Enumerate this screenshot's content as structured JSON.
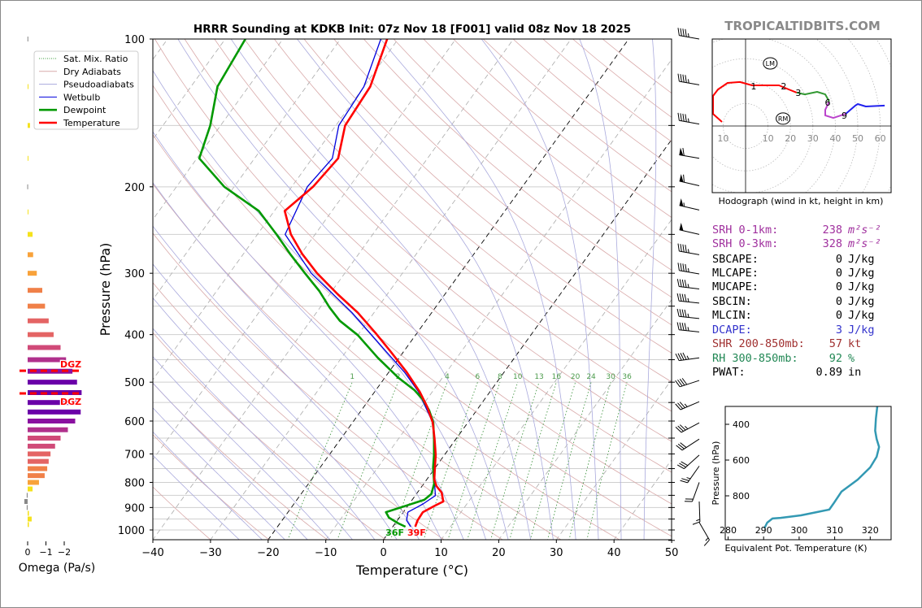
{
  "title": "HRRR Sounding at KDKB Init: 07z Nov 18 [F001] valid 08z Nov 18 2025",
  "watermark": "TROPICALTIDBITS.COM",
  "legend": [
    {
      "label": "Sat. Mix. Ratio",
      "color": "#3a9a3a",
      "style": "dotted"
    },
    {
      "label": "Dry Adiabats",
      "color": "#d9aaaa",
      "style": "solid"
    },
    {
      "label": "Pseudoadiabats",
      "color": "#aaaadd",
      "style": "solid"
    },
    {
      "label": "Wetbulb",
      "color": "#0000dd",
      "style": "solid"
    },
    {
      "label": "Dewpoint",
      "color": "#009900",
      "style": "thick"
    },
    {
      "label": "Temperature",
      "color": "#ff0000",
      "style": "thick"
    }
  ],
  "surface_labels": {
    "dewpoint": "36F",
    "temperature": "39F",
    "dewpoint_color": "#009900",
    "temperature_color": "#ff0000"
  },
  "stats": [
    {
      "label": "SRH 0-1km:",
      "value": "238",
      "unit": "m²s⁻²",
      "color": "#a0309e",
      "italic_unit": true
    },
    {
      "label": "SRH 0-3km:",
      "value": "328",
      "unit": "m²s⁻²",
      "color": "#a0309e",
      "italic_unit": true
    },
    {
      "label": "SBCAPE:",
      "value": "0",
      "unit": "J/kg",
      "color": "#000000"
    },
    {
      "label": "MLCAPE:",
      "value": "0",
      "unit": "J/kg",
      "color": "#000000"
    },
    {
      "label": "MUCAPE:",
      "value": "0",
      "unit": "J/kg",
      "color": "#000000"
    },
    {
      "label": "SBCIN:",
      "value": "0",
      "unit": "J/kg",
      "color": "#000000"
    },
    {
      "label": "MLCIN:",
      "value": "0",
      "unit": "J/kg",
      "color": "#000000"
    },
    {
      "label": "DCAPE:",
      "value": "3",
      "unit": "J/kg",
      "color": "#3333cc"
    },
    {
      "label": "SHR 200-850mb:",
      "value": "57",
      "unit": "kt",
      "color": "#a03030"
    },
    {
      "label": "RH 300-850mb:",
      "value": "92",
      "unit": "%",
      "color": "#228855"
    },
    {
      "label": "PWAT:",
      "value": "0.89",
      "unit": "in",
      "color": "#000000"
    }
  ],
  "chart_data": [
    {
      "type": "line",
      "name": "skew-t",
      "title": "HRRR Sounding at KDKB Init: 07z Nov 18 [F001] valid 08z Nov 18 2025",
      "xlabel": "Temperature (°C)",
      "ylabel": "Pressure (hPa)",
      "xlim": [
        -40,
        50
      ],
      "ylim": [
        1050,
        100
      ],
      "xticks": [
        -40,
        -30,
        -20,
        -10,
        0,
        10,
        20,
        30,
        40,
        50
      ],
      "xtick_labels": [
        "−40",
        "−30",
        "−20",
        "−10",
        "0",
        "10",
        "20",
        "30",
        "40",
        "50"
      ],
      "yticks": [
        100,
        200,
        300,
        400,
        500,
        600,
        700,
        800,
        900,
        1000
      ],
      "ytick_labels": [
        "100",
        "200",
        "300",
        "400",
        "500",
        "600",
        "700",
        "800",
        "900",
        "1000"
      ],
      "highlight_isotherms": [
        -20,
        0
      ],
      "mixing_ratio_values": [
        1,
        2,
        4,
        6,
        8,
        10,
        13,
        16,
        20,
        24,
        30,
        36
      ],
      "mixing_ratio_labels": [
        "1",
        "2",
        "4",
        "6",
        "8",
        "10",
        "13",
        "16",
        "20",
        "24",
        "30",
        "36"
      ],
      "series": [
        {
          "name": "Temperature",
          "color": "#ff0000",
          "p": [
            100,
            125,
            150,
            175,
            200,
            224,
            250,
            274,
            300,
            331,
            361,
            397,
            432,
            477,
            523,
            560,
            604,
            653,
            704,
            746,
            789,
            814,
            839,
            875,
            892,
            920,
            956,
            985
          ],
          "t": [
            -61.9,
            -58.9,
            -58.4,
            -55.5,
            -56.3,
            -58.2,
            -54.2,
            -49.8,
            -44.8,
            -38.6,
            -32.8,
            -27.2,
            -22.4,
            -16.9,
            -12.2,
            -9.1,
            -6.1,
            -3.7,
            -1.5,
            -0.1,
            1.3,
            2.5,
            4.2,
            5.6,
            4.7,
            3.4,
            3.5,
            3.9
          ]
        },
        {
          "name": "Dewpoint",
          "color": "#009900",
          "p": [
            100,
            125,
            150,
            175,
            200,
            224,
            250,
            274,
            300,
            326,
            352,
            375,
            401,
            446,
            490,
            519,
            543,
            571,
            604,
            653,
            704,
            746,
            805,
            845,
            868,
            920,
            944,
            970,
            985
          ],
          "t": [
            -86.5,
            -85.4,
            -81.8,
            -79.6,
            -71.7,
            -62.7,
            -56.7,
            -51.9,
            -46.9,
            -42.2,
            -38.4,
            -34.9,
            -30,
            -23.7,
            -17.6,
            -13.3,
            -10.6,
            -8.2,
            -6,
            -3.8,
            -1.8,
            -0.4,
            1.8,
            2.6,
            2.1,
            -3,
            -1.8,
            0.6,
            2.2
          ]
        },
        {
          "name": "Wetbulb",
          "color": "#0000dd",
          "p": [
            100,
            125,
            150,
            175,
            200,
            250,
            300,
            361,
            432,
            477,
            523,
            604,
            704,
            789,
            851,
            885,
            920,
            956,
            985
          ],
          "t": [
            -63,
            -60,
            -59.5,
            -56.5,
            -57.3,
            -55.2,
            -45.8,
            -33.8,
            -23.2,
            -17.3,
            -12.4,
            -6.1,
            -1.6,
            1.3,
            3.5,
            2.4,
            0.8,
            1.6,
            3.1
          ]
        }
      ],
      "wind_barbs": [
        {
          "p": 100,
          "dir": 280,
          "kt": 45
        },
        {
          "p": 124,
          "dir": 280,
          "kt": 45
        },
        {
          "p": 149,
          "dir": 280,
          "kt": 45
        },
        {
          "p": 175,
          "dir": 280,
          "kt": 60
        },
        {
          "p": 199,
          "dir": 283,
          "kt": 60
        },
        {
          "p": 223,
          "dir": 283,
          "kt": 55
        },
        {
          "p": 250,
          "dir": 283,
          "kt": 50
        },
        {
          "p": 275,
          "dir": 280,
          "kt": 45
        },
        {
          "p": 301,
          "dir": 280,
          "kt": 45
        },
        {
          "p": 323,
          "dir": 277,
          "kt": 45
        },
        {
          "p": 345,
          "dir": 276,
          "kt": 45
        },
        {
          "p": 371,
          "dir": 276,
          "kt": 45
        },
        {
          "p": 395,
          "dir": 276,
          "kt": 45
        },
        {
          "p": 446,
          "dir": 262,
          "kt": 45
        },
        {
          "p": 496,
          "dir": 252,
          "kt": 40
        },
        {
          "p": 548,
          "dir": 247,
          "kt": 35
        },
        {
          "p": 605,
          "dir": 242,
          "kt": 35
        },
        {
          "p": 653,
          "dir": 237,
          "kt": 30
        },
        {
          "p": 704,
          "dir": 228,
          "kt": 30
        },
        {
          "p": 741,
          "dir": 215,
          "kt": 25
        },
        {
          "p": 800,
          "dir": 200,
          "kt": 20
        },
        {
          "p": 875,
          "dir": 178,
          "kt": 15
        },
        {
          "p": 965,
          "dir": 150,
          "kt": 15
        }
      ]
    },
    {
      "type": "line",
      "name": "hodograph",
      "xlabel": "Hodograph (wind in kt, height in km)",
      "ring_labels": [
        {
          "u": -10,
          "text": "10"
        },
        {
          "u": 10,
          "text": "10"
        },
        {
          "u": 20,
          "text": "20"
        },
        {
          "u": 30,
          "text": "30"
        },
        {
          "u": 40,
          "text": "40"
        },
        {
          "u": 50,
          "text": "50"
        },
        {
          "u": 60,
          "text": "60"
        }
      ],
      "segments": [
        {
          "range": "0-3 km",
          "color": "#ff0000",
          "u": [
            -10.5,
            -14.5,
            -14.5,
            -12.3,
            -8,
            -2.5,
            2.9,
            8.3,
            14.9,
            19.2,
            22.8
          ],
          "v": [
            1.8,
            5.4,
            13.4,
            16.3,
            19.2,
            19.6,
            18.1,
            18.1,
            18.1,
            16.3,
            14.9
          ]
        },
        {
          "range": "3-6 km",
          "color": "#339933",
          "u": [
            22.8,
            26.4,
            31.9,
            35.5,
            37.3
          ],
          "v": [
            14.9,
            14.1,
            15.2,
            14.1,
            10.9
          ]
        },
        {
          "range": "6-9 km",
          "color": "#bb44cc",
          "u": [
            37.3,
            35.5,
            35.5,
            39.1,
            44.6
          ],
          "v": [
            10.9,
            7.2,
            4.7,
            3.6,
            5.4
          ]
        },
        {
          "range": "9+ km",
          "color": "#2222ee",
          "u": [
            44.6,
            48.9,
            50,
            53.6,
            62
          ],
          "v": [
            5.4,
            9.1,
            9.8,
            8.7,
            9.1
          ]
        }
      ],
      "height_labels": [
        {
          "text": "1",
          "u": 3.6,
          "v": 17.8
        },
        {
          "text": "2",
          "u": 17,
          "v": 17.8
        },
        {
          "text": "3",
          "u": 23.5,
          "v": 14.9
        },
        {
          "text": "6",
          "u": 36.6,
          "v": 10.5
        },
        {
          "text": "9",
          "u": 44,
          "v": 4.7
        }
      ],
      "storm_motion": [
        {
          "text": "LM",
          "u": 11,
          "v": 27.9
        },
        {
          "text": "RM",
          "u": 16.7,
          "v": 3.3
        }
      ]
    },
    {
      "type": "line",
      "name": "theta-e",
      "xlabel": "Equivalent Pot. Temperature (K)",
      "ylabel": "Pressure (hPa)",
      "xlim": [
        279.5,
        326
      ],
      "ylim": [
        1045,
        300
      ],
      "xticks": [
        280,
        290,
        300,
        310,
        320
      ],
      "xtick_labels": [
        "280",
        "290",
        "300",
        "310",
        "320"
      ],
      "yticks": [
        400,
        600,
        800
      ],
      "ytick_labels": [
        "400",
        "600",
        "800"
      ],
      "color": "#3399b3",
      "p": [
        300,
        368,
        436,
        482,
        527,
        582,
        641,
        709,
        777,
        845,
        877,
        891,
        909,
        923,
        927,
        950,
        982
      ],
      "theta_e": [
        322,
        321.6,
        321.4,
        321.8,
        322.5,
        321.8,
        320,
        316.5,
        311.9,
        309.6,
        308.5,
        305,
        300.5,
        294.8,
        292.5,
        291,
        290.2
      ]
    },
    {
      "type": "bar",
      "name": "omega",
      "xlabel": "Omega (Pa/s)",
      "xticks": [
        0,
        -1,
        -2
      ],
      "xtick_labels": [
        "0",
        "−1",
        "−2"
      ],
      "dgz": {
        "label": "DGZ",
        "top_hPa": 474,
        "bottom_hPa": 527,
        "color": "#ff0000"
      },
      "p": [
        100,
        125,
        150,
        175,
        200,
        225,
        250,
        275,
        300,
        325,
        350,
        375,
        400,
        425,
        450,
        475,
        500,
        525,
        550,
        575,
        600,
        625,
        650,
        675,
        700,
        725,
        750,
        775,
        800,
        825,
        850,
        875,
        900,
        925,
        950,
        975
      ],
      "values": [
        0.01,
        -0.02,
        -0.13,
        -0.03,
        0.02,
        -0.03,
        -0.27,
        -0.3,
        -0.5,
        -0.8,
        -0.95,
        -1.15,
        -1.42,
        -1.8,
        -2.1,
        -2.45,
        -2.7,
        -2.95,
        -2.8,
        -2.9,
        -2.6,
        -2.2,
        -1.8,
        -1.5,
        -1.25,
        -1.15,
        -1.07,
        -0.93,
        -0.62,
        -0.27,
        0.05,
        0.18,
        0.05,
        -0.07,
        -0.22,
        -0.07
      ]
    }
  ]
}
